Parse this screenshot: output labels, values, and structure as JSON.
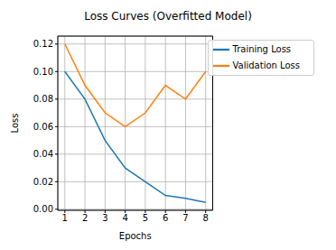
{
  "chart_data": {
    "type": "line",
    "title": "Loss Curves (Overfitted Model)",
    "x_label": "Epochs",
    "y_label": "Loss",
    "x": [
      1,
      2,
      3,
      4,
      5,
      6,
      7,
      8
    ],
    "series": [
      {
        "name": "Training Loss",
        "color": "#1f77b4",
        "values": [
          0.1,
          0.08,
          0.05,
          0.03,
          0.02,
          0.01,
          0.008,
          0.005
        ]
      },
      {
        "name": "Validation Loss",
        "color": "#ff7f0e",
        "values": [
          0.12,
          0.09,
          0.07,
          0.06,
          0.07,
          0.09,
          0.08,
          0.1
        ]
      }
    ],
    "xlim": [
      0.65,
      8.35
    ],
    "xticks": [
      1,
      2,
      3,
      4,
      5,
      6,
      7,
      8
    ],
    "ylim": [
      -0.00075,
      0.12575
    ],
    "yticks": [
      {
        "value": 0,
        "label": "0.00"
      },
      {
        "value": 0.02,
        "label": "0.02"
      },
      {
        "value": 0.04,
        "label": "0.04"
      },
      {
        "value": 0.06,
        "label": "0.06"
      },
      {
        "value": 0.08,
        "label": "0.08"
      },
      {
        "value": 0.1,
        "label": "0.10"
      },
      {
        "value": 0.12,
        "label": "0.12"
      }
    ],
    "grid": true,
    "legend": "upper right"
  }
}
